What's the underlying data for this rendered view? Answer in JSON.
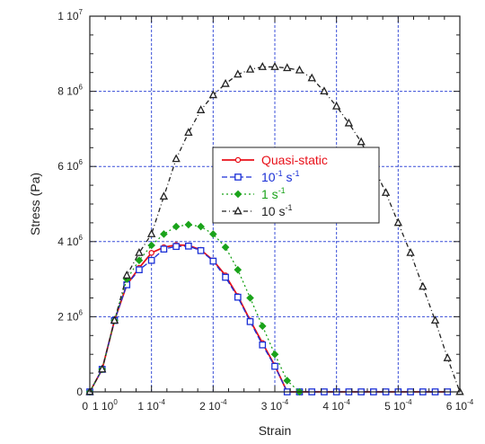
{
  "chart_data": {
    "type": "line",
    "title": "",
    "xlabel": "Strain",
    "ylabel": "Stress (Pa)",
    "xlim": [
      0,
      0.0006
    ],
    "ylim": [
      0,
      10000000
    ],
    "grid": true,
    "legend_position": "center",
    "x_tick_labels": [
      {
        "value": 0,
        "mantissa": "0",
        "exp": ""
      },
      {
        "value": 0.0001,
        "mantissa": "1 10",
        "exp": "-4"
      },
      {
        "value": 0.0002,
        "mantissa": "2 10",
        "exp": "-4"
      },
      {
        "value": 0.0003,
        "mantissa": "3 10",
        "exp": "-4"
      },
      {
        "value": 0.0004,
        "mantissa": "4 10",
        "exp": "-4"
      },
      {
        "value": 0.0005,
        "mantissa": "5 10",
        "exp": "-4"
      },
      {
        "value": 0.0006,
        "mantissa": "6 10",
        "exp": "-4"
      }
    ],
    "x_zero_label": {
      "mantissa": "1 10",
      "exp": "0"
    },
    "y_tick_labels": [
      {
        "value": 0,
        "mantissa": "0",
        "exp": ""
      },
      {
        "value": 2000000,
        "mantissa": "2 10",
        "exp": "6"
      },
      {
        "value": 4000000,
        "mantissa": "4 10",
        "exp": "6"
      },
      {
        "value": 6000000,
        "mantissa": "6 10",
        "exp": "6"
      },
      {
        "value": 8000000,
        "mantissa": "8 10",
        "exp": "6"
      },
      {
        "value": 10000000,
        "mantissa": "1 10",
        "exp": "7"
      }
    ],
    "series": [
      {
        "name": "Quasi-static",
        "color": "#e8111a",
        "marker": "circle",
        "dash": "solid",
        "x": [
          0,
          2e-05,
          4e-05,
          6e-05,
          8e-05,
          0.0001,
          0.00012,
          0.00014,
          0.00016,
          0.00018,
          0.0002,
          0.00022,
          0.00024,
          0.00026,
          0.00028,
          0.0003,
          0.00032,
          0.00034,
          0.00036,
          0.00038,
          0.0004,
          0.00042,
          0.00044,
          0.00046,
          0.00048,
          0.0005,
          0.00052,
          0.00054,
          0.00056,
          0.00058
        ],
        "y": [
          0,
          600000,
          1900000,
          2850000,
          3300000,
          3700000,
          3850000,
          3910000,
          3900000,
          3780000,
          3500000,
          3100000,
          2550000,
          1900000,
          1300000,
          700000,
          0,
          0,
          0,
          0,
          0,
          0,
          0,
          0,
          0,
          0,
          0,
          0,
          0,
          0
        ]
      },
      {
        "name": "10",
        "name_sup": "-1",
        "name_suffix": " s",
        "name_suffix_sup": "-1",
        "color": "#1a2fd6",
        "marker": "square",
        "dash": "dash",
        "x": [
          0,
          2e-05,
          4e-05,
          6e-05,
          8e-05,
          0.0001,
          0.00012,
          0.00014,
          0.00016,
          0.00018,
          0.0002,
          0.00022,
          0.00024,
          0.00026,
          0.00028,
          0.0003,
          0.00032,
          0.00034,
          0.00036,
          0.00038,
          0.0004,
          0.00042,
          0.00044,
          0.00046,
          0.00048,
          0.0005,
          0.00052,
          0.00054,
          0.00056,
          0.00058
        ],
        "y": [
          0,
          600000,
          1900000,
          2850000,
          3250000,
          3500000,
          3800000,
          3870000,
          3880000,
          3760000,
          3480000,
          3050000,
          2520000,
          1870000,
          1250000,
          680000,
          0,
          0,
          0,
          0,
          0,
          0,
          0,
          0,
          0,
          0,
          0,
          0,
          0,
          0
        ]
      },
      {
        "name": "1 s",
        "name_sup": "-1",
        "color": "#1aa31a",
        "marker": "diamond",
        "dash": "dot",
        "x": [
          0,
          2e-05,
          4e-05,
          6e-05,
          8e-05,
          0.0001,
          0.00012,
          0.00014,
          0.00016,
          0.00018,
          0.0002,
          0.00022,
          0.00024,
          0.00026,
          0.00028,
          0.0003,
          0.00032,
          0.00034
        ],
        "y": [
          0,
          600000,
          1900000,
          3000000,
          3500000,
          3900000,
          4200000,
          4400000,
          4450000,
          4400000,
          4200000,
          3850000,
          3250000,
          2500000,
          1750000,
          1000000,
          300000,
          0
        ]
      },
      {
        "name": "10 s",
        "name_sup": "-1",
        "color": "#222222",
        "marker": "triangle",
        "dash": "dashdot",
        "x": [
          0,
          2e-05,
          4e-05,
          6e-05,
          8e-05,
          0.0001,
          0.00012,
          0.00014,
          0.00016,
          0.00018,
          0.0002,
          0.00022,
          0.00024,
          0.00026,
          0.00028,
          0.0003,
          0.00032,
          0.00034,
          0.00036,
          0.00038,
          0.0004,
          0.00042,
          0.00044,
          0.00046,
          0.00048,
          0.0005,
          0.00052,
          0.00054,
          0.00056,
          0.00058,
          0.0006
        ],
        "y": [
          0,
          600000,
          1900000,
          3100000,
          3700000,
          4200000,
          5200000,
          6200000,
          6900000,
          7500000,
          7900000,
          8200000,
          8450000,
          8580000,
          8650000,
          8650000,
          8620000,
          8560000,
          8350000,
          8000000,
          7600000,
          7150000,
          6650000,
          6000000,
          5300000,
          4500000,
          3700000,
          2800000,
          1900000,
          900000,
          0
        ]
      }
    ]
  }
}
